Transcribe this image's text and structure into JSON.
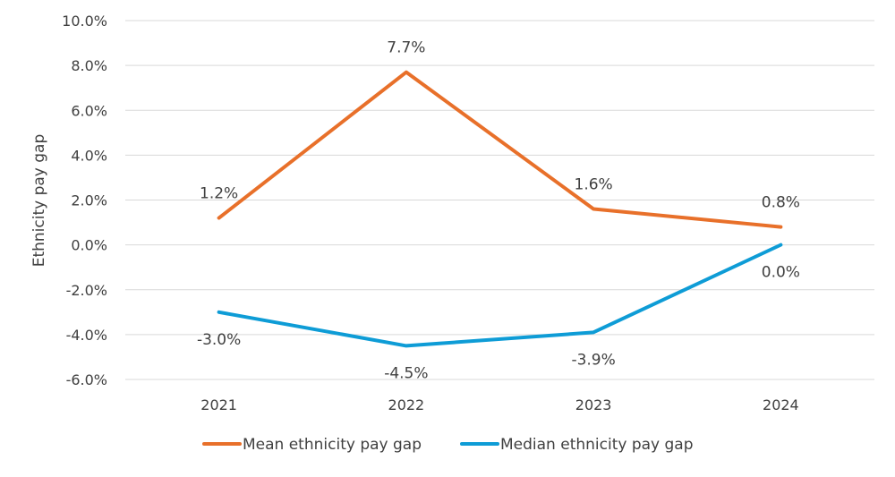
{
  "chart_data": {
    "type": "line",
    "title": "",
    "xlabel": "",
    "ylabel": "Ethnicity pay gap",
    "categories": [
      "2021",
      "2022",
      "2023",
      "2024"
    ],
    "ylim": [
      -6,
      10
    ],
    "yticks": [
      -6,
      -4,
      -2,
      0,
      2,
      4,
      6,
      8,
      10
    ],
    "ytick_labels": [
      "-6.0%",
      "-4.0%",
      "-2.0%",
      "0.0%",
      "2.0%",
      "4.0%",
      "6.0%",
      "8.0%",
      "10.0%"
    ],
    "grid": true,
    "legend_position": "bottom",
    "series": [
      {
        "name": "Mean ethnicity pay gap",
        "color": "#E8702A",
        "values": [
          1.2,
          7.7,
          1.6,
          0.8
        ],
        "labels": [
          "1.2%",
          "7.7%",
          "1.6%",
          "0.8%"
        ]
      },
      {
        "name": "Median ethnicity pay gap",
        "color": "#0E9CD6",
        "values": [
          -3.0,
          -4.5,
          -3.9,
          0.0
        ],
        "labels": [
          "-3.0%",
          "-4.5%",
          "-3.9%",
          "0.0%"
        ]
      }
    ]
  }
}
